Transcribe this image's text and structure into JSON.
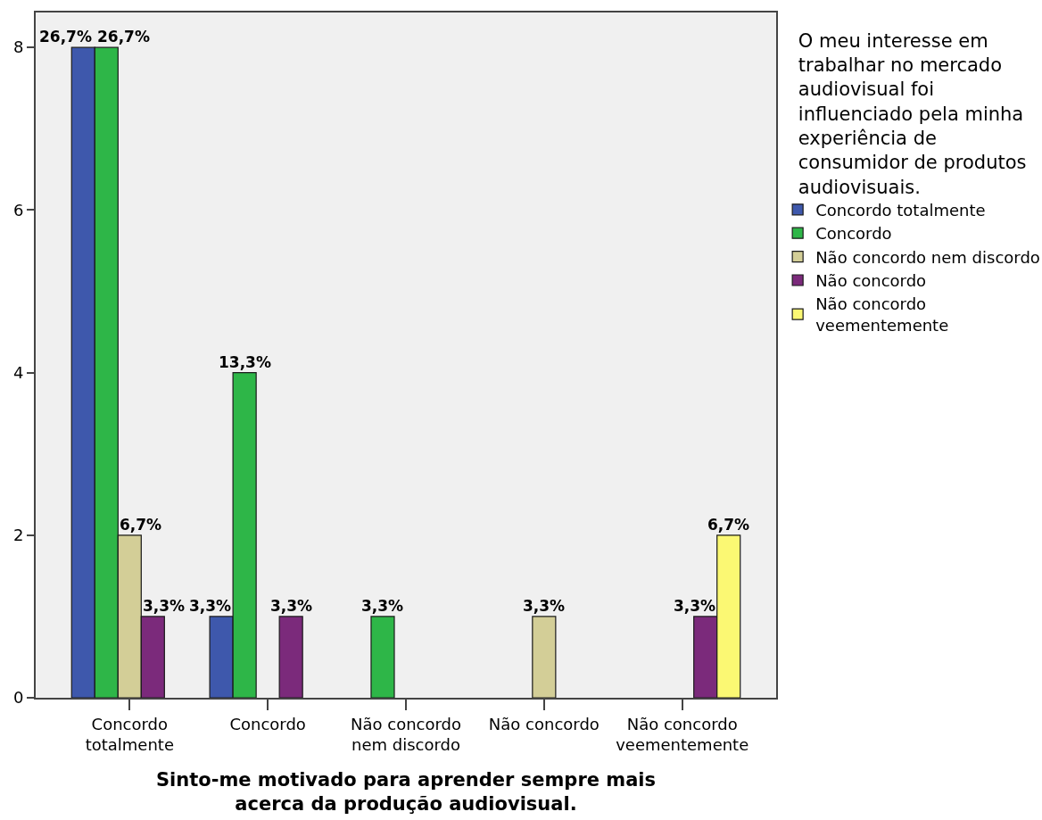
{
  "chart_data": {
    "type": "bar",
    "xlabel": "Sinto-me motivado para aprender sempre mais acerca da produção audiovisual.",
    "legend_title": "O meu interesse em trabalhar no mercado audiovisual foi influenciado pela minha experiência de consumidor de produtos audiovisuais.",
    "categories": [
      "Concordo totalmente",
      "Concordo",
      "Não concordo nem discordo",
      "Não concordo",
      "Não concordo veementemente"
    ],
    "series": [
      {
        "name": "Concordo totalmente",
        "color": "#3e58ac",
        "values": [
          8,
          1,
          null,
          null,
          null
        ]
      },
      {
        "name": "Concordo",
        "color": "#2eb648",
        "values": [
          8,
          4,
          1,
          null,
          null
        ]
      },
      {
        "name": "Não concordo nem discordo",
        "color": "#d3ce97",
        "values": [
          2,
          null,
          null,
          1,
          null
        ]
      },
      {
        "name": "Não concordo",
        "color": "#7b2a7b",
        "values": [
          1,
          1,
          null,
          null,
          1
        ]
      },
      {
        "name": "Não concordo veementemente",
        "color": "#fbf873",
        "values": [
          null,
          null,
          null,
          null,
          2
        ]
      }
    ],
    "annotations": [
      "26,7%",
      "26,7%",
      "6,7%",
      "3,3%",
      "3,3%",
      "13,3%",
      "3,3%",
      "3,3%",
      "3,3%",
      "3,3%",
      "6,7%"
    ],
    "ylim": [
      0,
      8.43
    ],
    "yticks": [
      0,
      2,
      4,
      6,
      8
    ],
    "grid": false,
    "legend": "top right"
  }
}
